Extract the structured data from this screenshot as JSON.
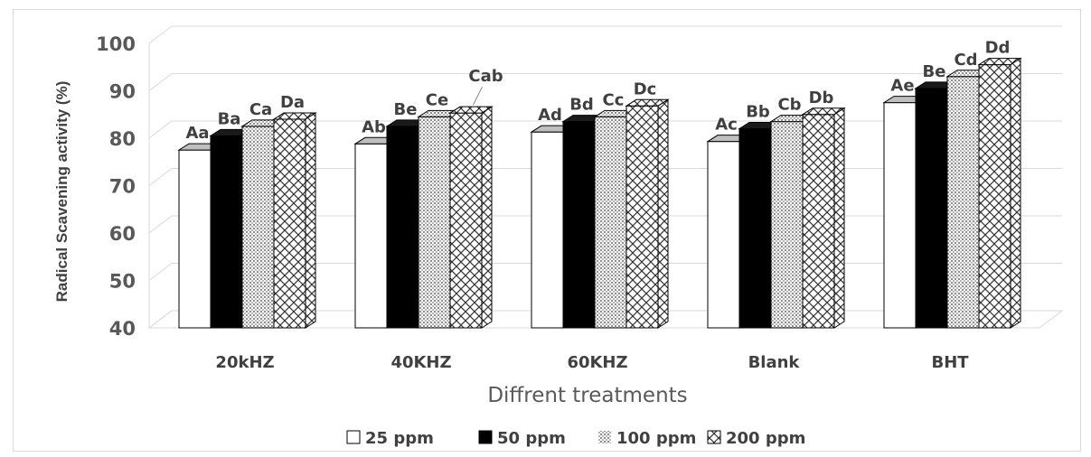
{
  "chart_data": {
    "type": "bar",
    "style": "3d-clustered-column",
    "categories": [
      "20kHZ",
      "40KHZ",
      "60KHZ",
      "Blank",
      "BHT"
    ],
    "series": [
      {
        "name": "25 ppm",
        "pattern": "white",
        "values": [
          77.5,
          78.8,
          81.3,
          79.3,
          87.5
        ],
        "labels": [
          "Aa",
          "Ab",
          "Ad",
          "Ac",
          "Ae"
        ]
      },
      {
        "name": "50 ppm",
        "pattern": "black",
        "values": [
          80.5,
          82.5,
          83.5,
          82.0,
          90.5
        ],
        "labels": [
          "Ba",
          "Be",
          "Bd",
          "Bb",
          "Be"
        ]
      },
      {
        "name": "100 ppm",
        "pattern": "dotted",
        "values": [
          82.5,
          84.5,
          84.5,
          83.5,
          93.0
        ],
        "labels": [
          "Ca",
          "Ce",
          "Cc",
          "Cb",
          "Cd"
        ]
      },
      {
        "name": "200 ppm",
        "pattern": "crosshatch",
        "values": [
          84.0,
          85.3,
          86.8,
          85.0,
          95.5
        ],
        "labels": [
          "Da",
          "Cab",
          "Dc",
          "Db",
          "Dd"
        ]
      }
    ],
    "title": "",
    "xlabel": "Diffrent treatments",
    "ylabel": "Radical Scavening activity (%)",
    "ylim": [
      40,
      100
    ],
    "yticks": [
      40,
      50,
      60,
      70,
      80,
      90,
      100
    ],
    "grid": true,
    "legend_position": "bottom"
  }
}
